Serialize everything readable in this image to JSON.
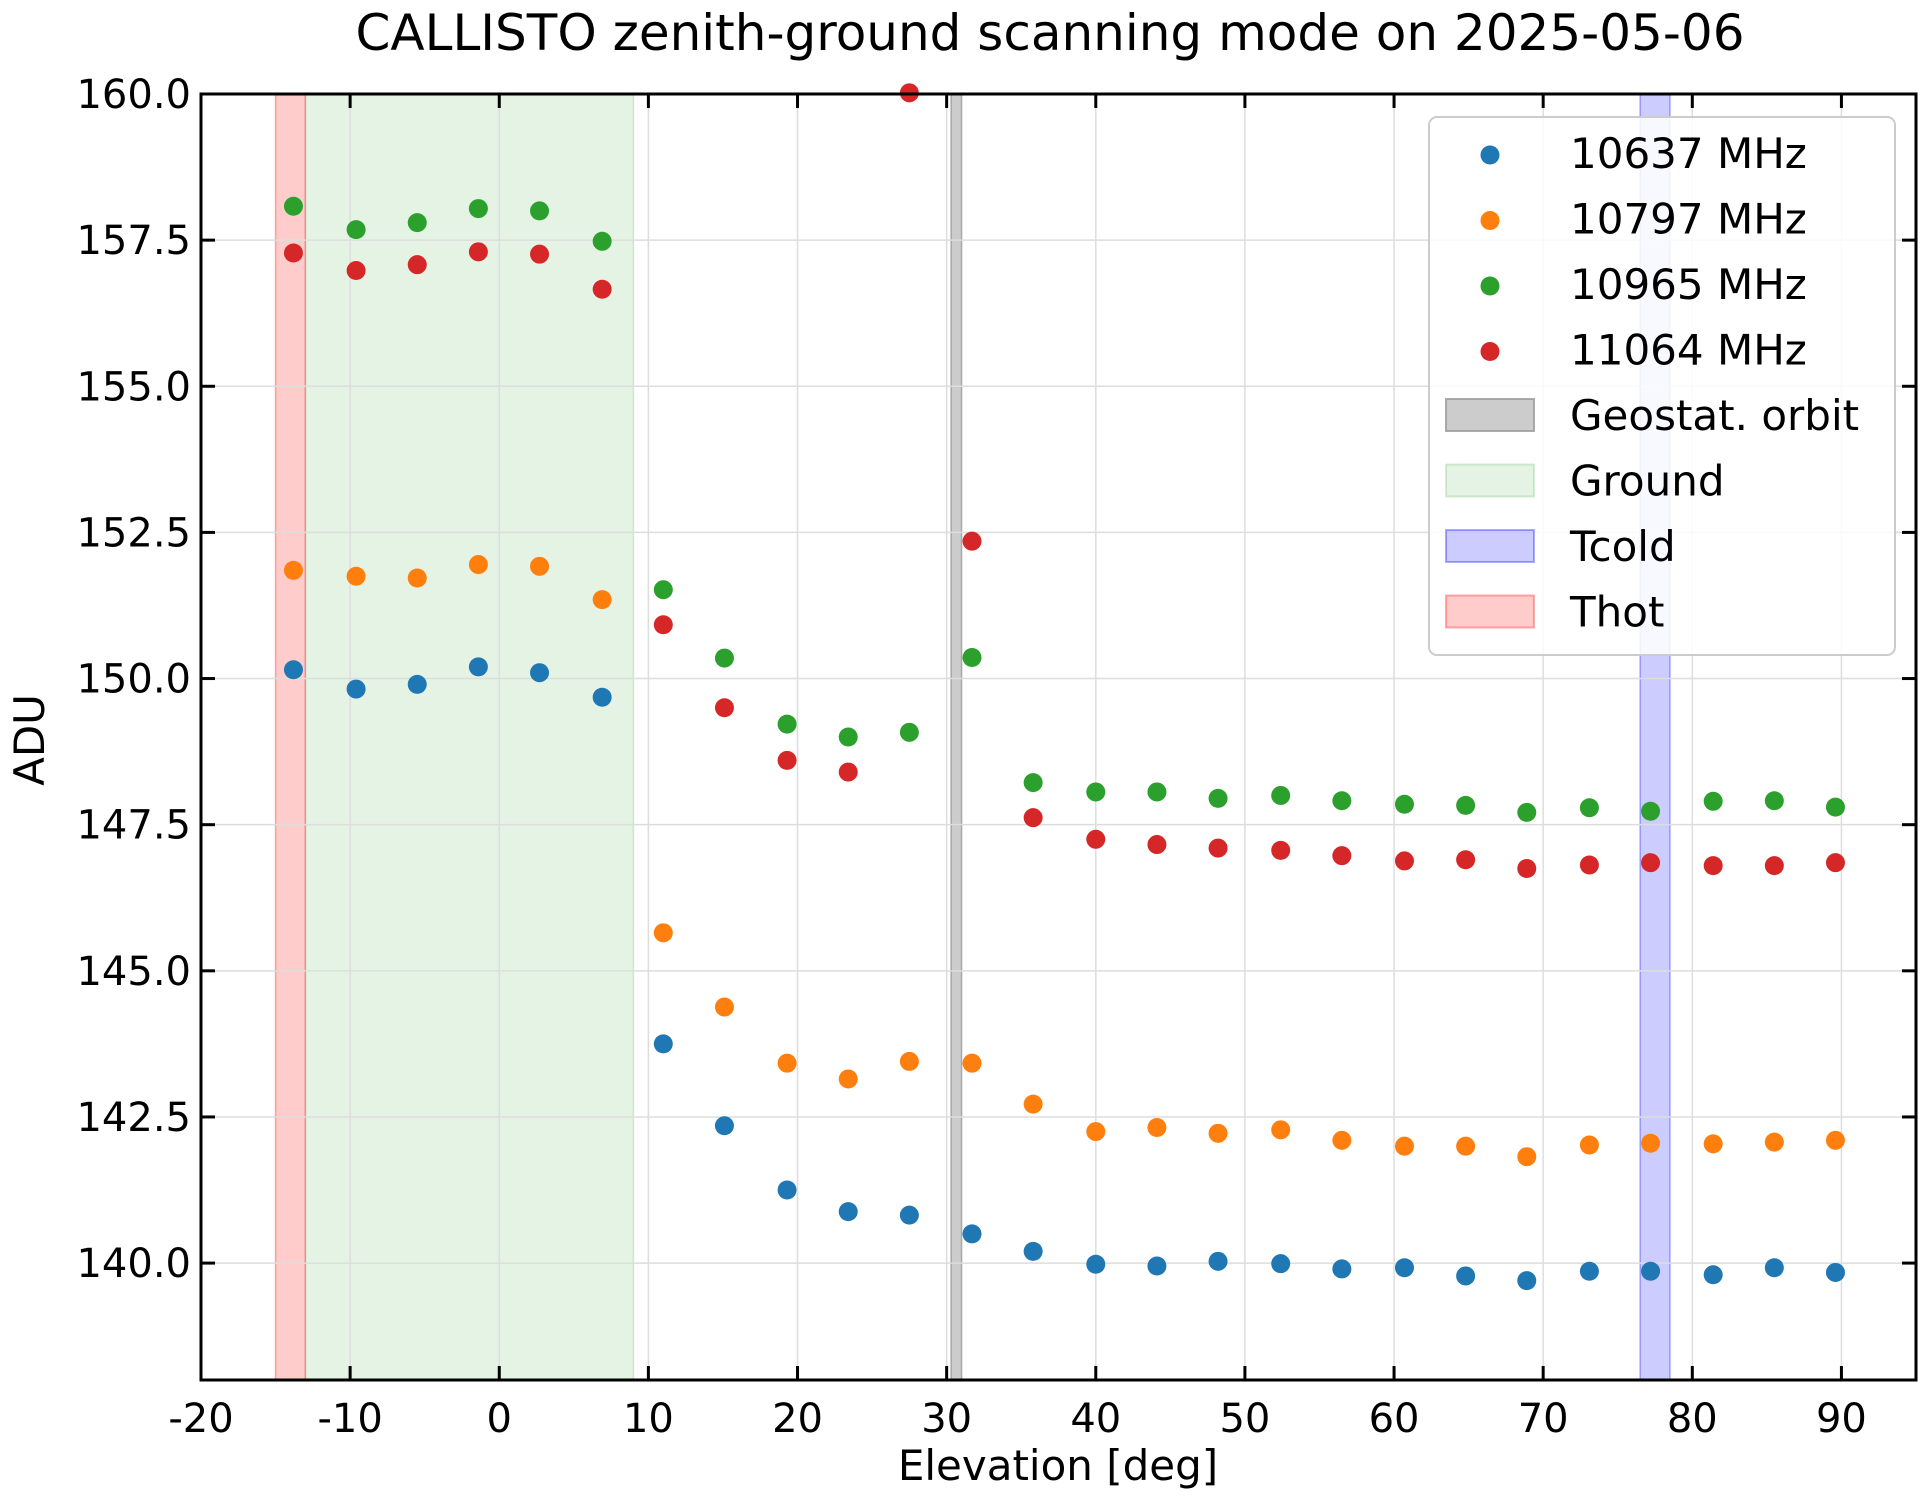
{
  "chart_data": {
    "type": "scatter",
    "title": "CALLISTO zenith-ground scanning mode on 2025-05-06",
    "xlabel": "Elevation [deg]",
    "ylabel": "ADU",
    "xlim": [
      -20,
      95
    ],
    "ylim": [
      138.0,
      160.0
    ],
    "xticks": [
      -20,
      -10,
      0,
      10,
      20,
      30,
      40,
      50,
      60,
      70,
      80,
      90
    ],
    "xtick_labels": [
      "-20",
      "-10",
      "0",
      "10",
      "20",
      "30",
      "40",
      "50",
      "60",
      "70",
      "80",
      "90"
    ],
    "yticks": [
      140.0,
      142.5,
      145.0,
      147.5,
      150.0,
      152.5,
      155.0,
      157.5,
      160.0
    ],
    "ytick_labels": [
      "140.0",
      "142.5",
      "145.0",
      "147.5",
      "150.0",
      "152.5",
      "155.0",
      "157.5",
      "160.0"
    ],
    "grid": true,
    "legend_position": "top-right",
    "x": [
      -13.8,
      -9.6,
      -5.5,
      -1.4,
      2.7,
      6.9,
      11.0,
      15.1,
      19.3,
      23.4,
      27.5,
      31.7,
      35.8,
      40.0,
      44.1,
      48.2,
      52.4,
      56.5,
      60.7,
      64.8,
      68.9,
      73.1,
      77.2,
      81.4,
      85.5,
      89.6
    ],
    "series": [
      {
        "name": "10637 MHz",
        "color": "#1f77b4",
        "values": [
          150.15,
          149.82,
          149.9,
          150.2,
          150.1,
          149.68,
          143.75,
          142.35,
          141.25,
          140.88,
          140.82,
          140.5,
          140.2,
          139.98,
          139.95,
          140.03,
          139.99,
          139.9,
          139.92,
          139.78,
          139.7,
          139.86,
          139.86,
          139.8,
          139.92,
          139.84
        ]
      },
      {
        "name": "10797 MHz",
        "color": "#ff7f0e",
        "values": [
          151.85,
          151.75,
          151.72,
          151.95,
          151.92,
          151.35,
          145.65,
          144.38,
          143.42,
          143.15,
          143.45,
          143.42,
          142.72,
          142.25,
          142.32,
          142.22,
          142.28,
          142.1,
          142.0,
          142.0,
          141.82,
          142.02,
          142.05,
          142.04,
          142.07,
          142.1
        ]
      },
      {
        "name": "10965 MHz",
        "color": "#2ca02c",
        "values": [
          158.08,
          157.68,
          157.8,
          158.04,
          158.0,
          157.48,
          151.52,
          150.35,
          149.22,
          149.0,
          149.08,
          150.36,
          148.22,
          148.06,
          148.06,
          147.95,
          148.0,
          147.91,
          147.85,
          147.83,
          147.71,
          147.79,
          147.73,
          147.9,
          147.91,
          147.8
        ]
      },
      {
        "name": "11064 MHz",
        "color": "#d62728",
        "values": [
          157.28,
          156.98,
          157.08,
          157.3,
          157.26,
          156.66,
          150.92,
          149.5,
          148.6,
          148.4,
          160.02,
          152.35,
          147.62,
          147.25,
          147.16,
          147.1,
          147.06,
          146.97,
          146.88,
          146.9,
          146.75,
          146.81,
          146.85,
          146.8,
          146.8,
          146.85
        ]
      }
    ],
    "regions": [
      {
        "name": "Geostat. orbit",
        "x_start": 30.3,
        "x_end": 31.0,
        "color": "#999999",
        "opacity": 0.5
      },
      {
        "name": "Ground",
        "x_start": -13.0,
        "x_end": 9.0,
        "color": "#2ca02c",
        "opacity": 0.12
      },
      {
        "name": "Tcold",
        "x_start": 76.5,
        "x_end": 78.5,
        "color": "#0000ff",
        "opacity": 0.2
      },
      {
        "name": "Thot",
        "x_start": -15.0,
        "x_end": -13.0,
        "color": "#ff3333",
        "opacity": 0.25
      }
    ]
  }
}
